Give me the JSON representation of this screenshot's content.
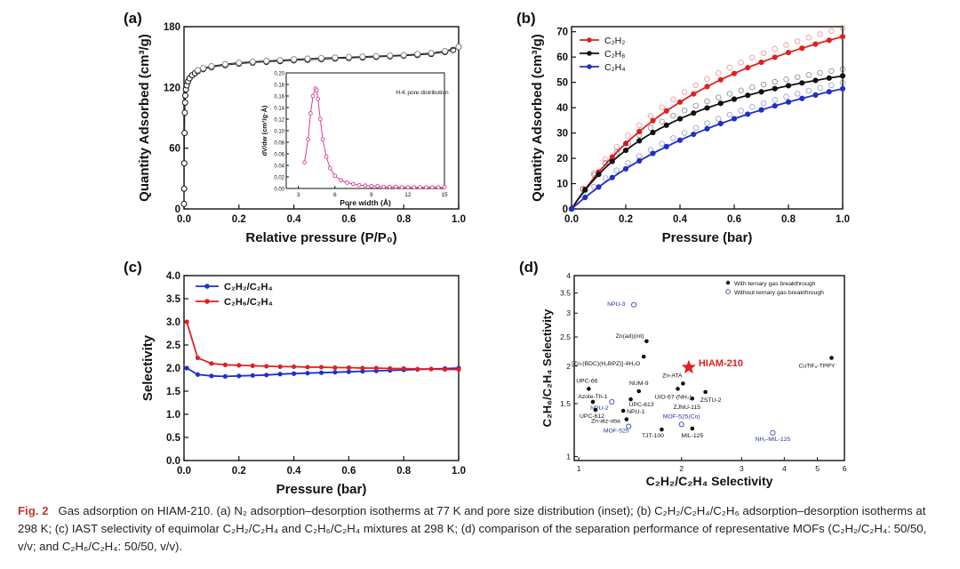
{
  "figure": {
    "caption": {
      "label": "Fig. 2",
      "text": "Gas adsorption on HIAM-210. (a) N₂ adsorption–desorption isotherms at 77 K and pore size distribution (inset); (b) C₂H₂/C₂H₄/C₂H₆ adsorption–desorption isotherms at 298 K; (c) IAST selectivity of equimolar C₂H₂/C₂H₄ and C₂H₆/C₂H₄ mixtures at 298 K; (d) comparison of the separation performance of representative MOFs (C₂H₂/C₂H₄: 50/50, v/v; and C₂H₆/C₂H₄: 50/50, v/v)."
    }
  },
  "chart_data": [
    {
      "panel": "(a)",
      "type": "scatter",
      "xlabel": "Relative pressure (P/P₀)",
      "ylabel": "Quantity Adsorbed (cm³/g)",
      "xlim": [
        0,
        1.0
      ],
      "ylim": [
        0,
        180
      ],
      "xticks": [
        "0.0",
        "0.2",
        "0.4",
        "0.6",
        "0.8",
        "1.0"
      ],
      "yticks": [
        "0",
        "60",
        "120",
        "180"
      ],
      "series": [
        {
          "name": "adsorption",
          "color": "#111111",
          "x": [
            0.0,
            0.0005,
            0.001,
            0.002,
            0.003,
            0.004,
            0.005,
            0.007,
            0.01,
            0.015,
            0.02,
            0.03,
            0.04,
            0.05,
            0.07,
            0.1,
            0.15,
            0.2,
            0.25,
            0.3,
            0.35,
            0.4,
            0.45,
            0.5,
            0.55,
            0.6,
            0.65,
            0.7,
            0.75,
            0.8,
            0.85,
            0.9,
            0.95,
            0.98,
            1.0
          ],
          "y": [
            5,
            20,
            45,
            75,
            95,
            105,
            112,
            118,
            122,
            126,
            129,
            132,
            134,
            136,
            138,
            140,
            142,
            143.5,
            144.5,
            145.3,
            146,
            146.7,
            147.3,
            147.9,
            148.5,
            149,
            149.6,
            150.1,
            150.7,
            151.3,
            152,
            153,
            155,
            157,
            160
          ]
        },
        {
          "name": "desorption",
          "color": "#888888",
          "x": [
            1.0,
            0.95,
            0.9,
            0.85,
            0.8,
            0.75,
            0.7,
            0.65,
            0.6,
            0.55,
            0.5,
            0.45,
            0.4,
            0.35,
            0.3,
            0.25,
            0.2,
            0.15,
            0.1,
            0.07,
            0.05
          ],
          "y": [
            160,
            156,
            154,
            153,
            152,
            151.5,
            151,
            150.5,
            150,
            149.5,
            149,
            148.5,
            147.8,
            147,
            146.2,
            145.4,
            144.4,
            143,
            141,
            139,
            137
          ]
        }
      ],
      "inset": {
        "title": "H-K pore distribution",
        "xlabel": "Pore width (Å)",
        "ylabel": "dV/dw (cm³/g·Å)",
        "xlim": [
          2,
          15
        ],
        "ylim": [
          0,
          0.2
        ],
        "xticks": [
          "3",
          "6",
          "9",
          "12",
          "15"
        ],
        "yticks": [
          "0.00",
          "0.02",
          "0.04",
          "0.06",
          "0.08",
          "0.10",
          "0.12",
          "0.14",
          "0.16",
          "0.18",
          "0.20"
        ],
        "color": "#d63a9a",
        "x": [
          3.5,
          3.8,
          4.0,
          4.2,
          4.4,
          4.5,
          4.6,
          4.8,
          5.0,
          5.3,
          5.6,
          6.0,
          6.5,
          7.0,
          7.5,
          8.0,
          8.5,
          9.0,
          9.5,
          10,
          10.5,
          11,
          11.5,
          12,
          12.5,
          13,
          13.5,
          14,
          14.5,
          15
        ],
        "y": [
          0.045,
          0.085,
          0.13,
          0.16,
          0.173,
          0.17,
          0.155,
          0.12,
          0.085,
          0.055,
          0.035,
          0.022,
          0.014,
          0.01,
          0.008,
          0.006,
          0.005,
          0.004,
          0.004,
          0.003,
          0.003,
          0.003,
          0.002,
          0.002,
          0.002,
          0.002,
          0.002,
          0.002,
          0.002,
          0.002
        ]
      }
    },
    {
      "panel": "(b)",
      "type": "line",
      "xlabel": "Pressure (bar)",
      "ylabel": "Quantity Adsorbed (cm³/g)",
      "xlim": [
        0,
        1.0
      ],
      "ylim": [
        0,
        72
      ],
      "xticks": [
        "0.0",
        "0.2",
        "0.4",
        "0.6",
        "0.8",
        "1.0"
      ],
      "yticks": [
        "0",
        "10",
        "20",
        "30",
        "40",
        "50",
        "60",
        "70"
      ],
      "legend": "top-left",
      "series": [
        {
          "name": "C₂H₂",
          "color": "#e02020",
          "qmax": 115,
          "b": 1.45
        },
        {
          "name": "C₂H₆",
          "color": "#111111",
          "qmax": 77,
          "b": 2.15
        },
        {
          "name": "C₂H₄",
          "color": "#2030c0",
          "qmax": 95,
          "b": 1.0
        }
      ]
    },
    {
      "panel": "(c)",
      "type": "line",
      "xlabel": "Pressure (bar)",
      "ylabel": "Selectivity",
      "xlim": [
        0,
        1.0
      ],
      "ylim": [
        0,
        4.0
      ],
      "xticks": [
        "0.0",
        "0.2",
        "0.4",
        "0.6",
        "0.8",
        "1.0"
      ],
      "yticks": [
        "0.0",
        "0.5",
        "1.0",
        "1.5",
        "2.0",
        "2.5",
        "3.0",
        "3.5",
        "4.0"
      ],
      "legend": "top-left",
      "series": [
        {
          "name": "C₂H₂/C₂H₄",
          "color": "#2030d0",
          "x": [
            0.01,
            0.05,
            0.1,
            0.15,
            0.2,
            0.25,
            0.3,
            0.35,
            0.4,
            0.45,
            0.5,
            0.55,
            0.6,
            0.65,
            0.7,
            0.75,
            0.8,
            0.85,
            0.9,
            0.95,
            1.0
          ],
          "y": [
            2.0,
            1.86,
            1.83,
            1.82,
            1.83,
            1.84,
            1.85,
            1.87,
            1.88,
            1.89,
            1.9,
            1.91,
            1.92,
            1.93,
            1.94,
            1.95,
            1.96,
            1.97,
            1.98,
            1.99,
            2.0
          ]
        },
        {
          "name": "C₂H₆/C₂H₄",
          "color": "#e02020",
          "x": [
            0.01,
            0.05,
            0.1,
            0.15,
            0.2,
            0.25,
            0.3,
            0.35,
            0.4,
            0.45,
            0.5,
            0.55,
            0.6,
            0.65,
            0.7,
            0.75,
            0.8,
            0.85,
            0.9,
            0.95,
            1.0
          ],
          "y": [
            3.0,
            2.22,
            2.1,
            2.07,
            2.06,
            2.05,
            2.04,
            2.03,
            2.03,
            2.02,
            2.02,
            2.01,
            2.01,
            2.0,
            2.0,
            1.99,
            1.99,
            1.98,
            1.98,
            1.97,
            1.97
          ]
        }
      ]
    },
    {
      "panel": "(d)",
      "type": "scatter",
      "xlabel": "C₂H₂/C₂H₄ Selectivity",
      "ylabel": "C₂H₆/C₂H₄ Selectivity",
      "xscale": "log",
      "yscale": "log",
      "xlim": [
        0.97,
        6.0
      ],
      "ylim": [
        0.97,
        4.0
      ],
      "xticks": [
        "1",
        "2",
        "3",
        "4",
        "5",
        "6"
      ],
      "yticks": [
        "1",
        "1.5",
        "2",
        "2.5",
        "3",
        "3.5",
        "4"
      ],
      "legend": "top-right",
      "legend_entries": [
        "With ternary gas breakthrough",
        "Without ternary gas breakthrough"
      ],
      "highlight": {
        "label": "HIAM-210",
        "x": 2.1,
        "y": 1.98,
        "color": "#e02020"
      },
      "points": [
        {
          "label": "NPU-3",
          "x": 1.45,
          "y": 3.2,
          "filled": false
        },
        {
          "label": "Zn(ad)(int)",
          "x": 1.58,
          "y": 2.42,
          "filled": true
        },
        {
          "label": "[Zn-(BDC)(H₂BPZ)]·4H₂O",
          "x": 1.55,
          "y": 2.15,
          "filled": true
        },
        {
          "label": "CuTiF₆-TPPY",
          "x": 5.5,
          "y": 2.13,
          "filled": true
        },
        {
          "label": "UPC-66",
          "x": 1.07,
          "y": 1.68,
          "filled": true
        },
        {
          "label": "NUM-9",
          "x": 1.5,
          "y": 1.65,
          "filled": true
        },
        {
          "label": "Zn-ATA",
          "x": 2.02,
          "y": 1.75,
          "filled": true
        },
        {
          "label": "UIO-67-(NH₂)₂",
          "x": 1.95,
          "y": 1.68,
          "filled": true
        },
        {
          "label": "ZSTU-2",
          "x": 2.35,
          "y": 1.64,
          "filled": true
        },
        {
          "label": "Azole-Th-1",
          "x": 1.1,
          "y": 1.52,
          "filled": true
        },
        {
          "label": "UPC-613",
          "x": 1.42,
          "y": 1.55,
          "filled": true
        },
        {
          "label": "NPU-2",
          "x": 1.25,
          "y": 1.52,
          "filled": false
        },
        {
          "label": "ZJNU-115",
          "x": 2.15,
          "y": 1.56,
          "filled": true
        },
        {
          "label": "UPC-612",
          "x": 1.12,
          "y": 1.43,
          "filled": true
        },
        {
          "label": "NPU-1",
          "x": 1.35,
          "y": 1.42,
          "filled": true
        },
        {
          "label": "Zn-atz-oba",
          "x": 1.38,
          "y": 1.33,
          "filled": true
        },
        {
          "label": "MOF-525(Co)",
          "x": 2.0,
          "y": 1.28,
          "filled": false
        },
        {
          "label": "MOF-525",
          "x": 1.4,
          "y": 1.26,
          "filled": false
        },
        {
          "label": "TJT-100",
          "x": 1.75,
          "y": 1.23,
          "filled": true
        },
        {
          "label": "MIL-125",
          "x": 2.15,
          "y": 1.24,
          "filled": true
        },
        {
          "label": "NH₂-MIL-125",
          "x": 3.7,
          "y": 1.2,
          "filled": false
        }
      ]
    }
  ]
}
